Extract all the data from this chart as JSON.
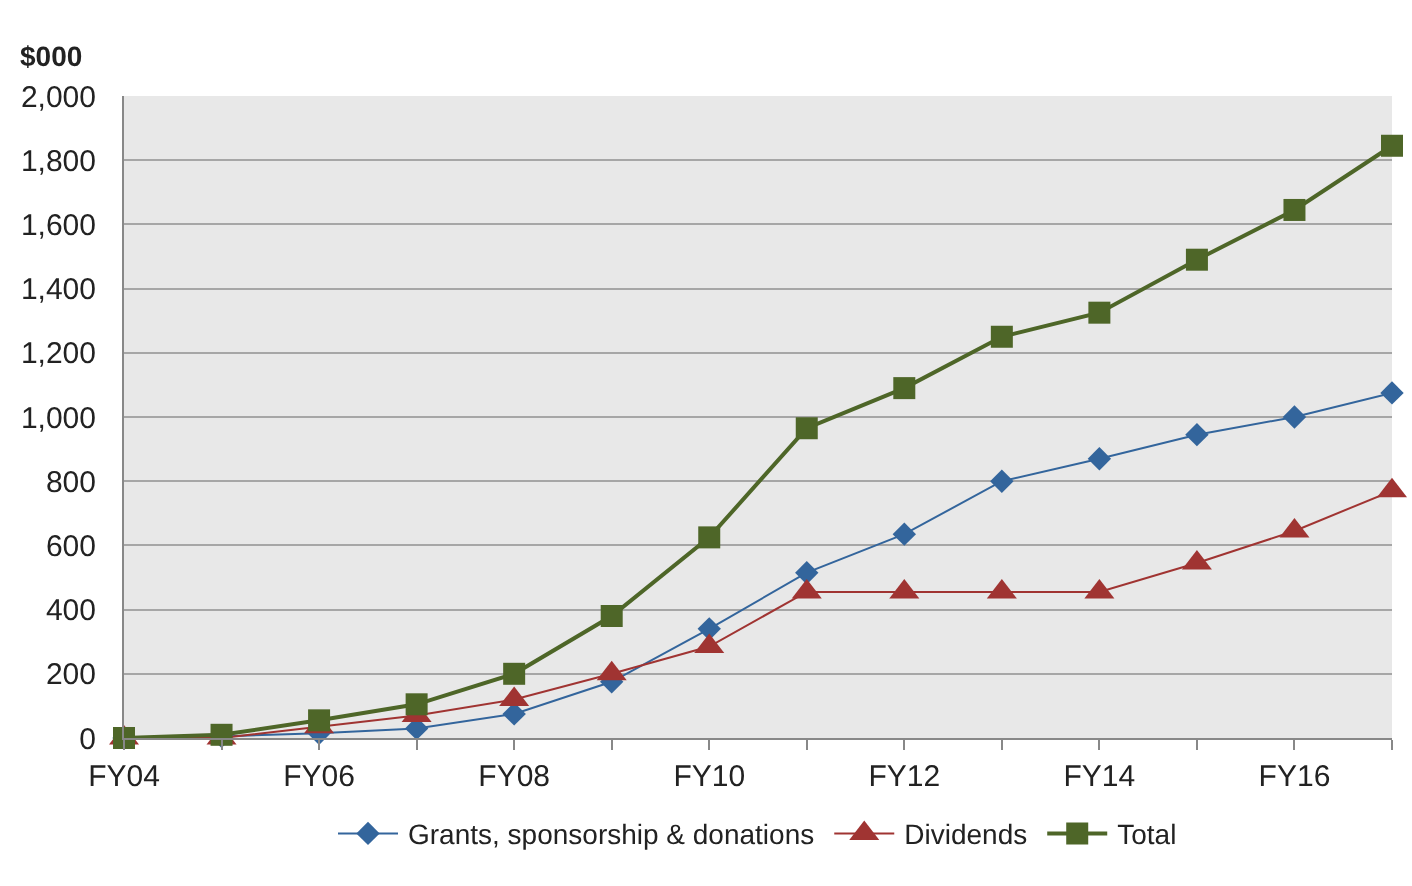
{
  "chart_data": {
    "type": "line",
    "ylabel": "$000",
    "categories": [
      "FY04",
      null,
      "FY06",
      null,
      "FY08",
      null,
      "FY10",
      null,
      "FY12",
      null,
      "FY14",
      null,
      "FY16",
      null
    ],
    "series": [
      {
        "name": "Grants, sponsorship & donations",
        "color": "#33659c",
        "marker": "diamond",
        "values": [
          0,
          5,
          15,
          30,
          75,
          175,
          340,
          515,
          635,
          800,
          870,
          945,
          1000,
          1075
        ]
      },
      {
        "name": "Dividends",
        "color": "#a03432",
        "marker": "triangle",
        "values": [
          0,
          0,
          35,
          70,
          120,
          200,
          285,
          455,
          455,
          455,
          455,
          545,
          645,
          770
        ]
      },
      {
        "name": "Total",
        "color": "#4e6628",
        "marker": "square",
        "values": [
          0,
          10,
          55,
          105,
          200,
          380,
          625,
          965,
          1090,
          1250,
          1325,
          1490,
          1645,
          1845
        ]
      }
    ],
    "ylim": [
      0,
      2000
    ],
    "yticks": [
      {
        "value": 0,
        "label": "0"
      },
      {
        "value": 200,
        "label": "200"
      },
      {
        "value": 400,
        "label": "400"
      },
      {
        "value": 600,
        "label": "600"
      },
      {
        "value": 800,
        "label": "800"
      },
      {
        "value": 1000,
        "label": "1,000"
      },
      {
        "value": 1200,
        "label": "1,200"
      },
      {
        "value": 1400,
        "label": "1,400"
      },
      {
        "value": 1600,
        "label": "1,600"
      },
      {
        "value": 1800,
        "label": "1,800"
      },
      {
        "value": 2000,
        "label": "2,000"
      }
    ],
    "grid": "y",
    "legend": "bottom",
    "line_style": "solid"
  }
}
